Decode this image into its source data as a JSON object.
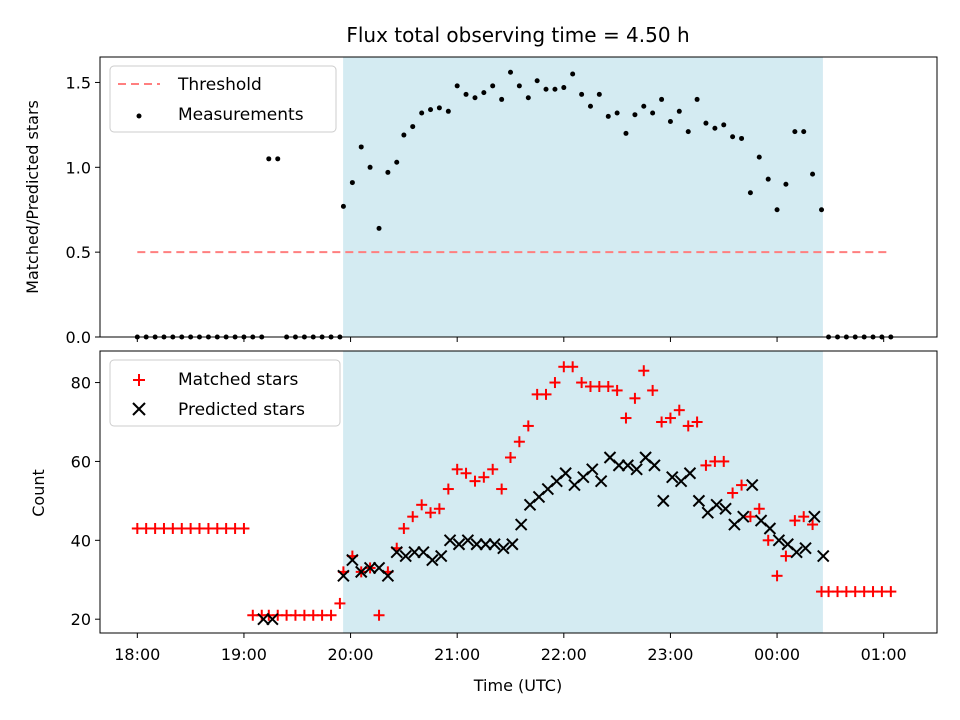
{
  "chart_data": [
    {
      "type": "scatter",
      "title": "Flux total observing time = 4.50 h",
      "ylabel": "Matched/Predicted stars",
      "xlabel": "",
      "ylim": [
        0,
        1.65
      ],
      "yticks": [
        "0.0",
        "0.5",
        "1.0",
        "1.5"
      ],
      "ytick_values": [
        0,
        0.5,
        1.0,
        1.5
      ],
      "legend": {
        "placement": "top-left",
        "entries": [
          "Threshold",
          "Measurements"
        ]
      },
      "shaded_region": {
        "start_hours": 1.93,
        "end_hours": 6.43,
        "color": "#d4ebf2"
      },
      "threshold": {
        "value": 0.5,
        "start_hours": 0.0,
        "end_hours": 7.05,
        "color": "#ff7f7f"
      },
      "series": [
        {
          "name": "Measurements",
          "color": "#000000",
          "x": [
            0.0,
            0.083,
            0.167,
            0.25,
            0.333,
            0.417,
            0.5,
            0.583,
            0.667,
            0.75,
            0.833,
            0.917,
            1.0,
            1.083,
            1.167,
            1.233,
            1.317,
            1.4,
            1.483,
            1.567,
            1.65,
            1.733,
            1.817,
            1.9,
            1.933,
            2.017,
            2.1,
            2.183,
            2.267,
            2.35,
            2.433,
            2.5,
            2.583,
            2.667,
            2.75,
            2.833,
            2.917,
            3.0,
            3.083,
            3.167,
            3.25,
            3.333,
            3.417,
            3.5,
            3.583,
            3.667,
            3.75,
            3.833,
            3.917,
            4.0,
            4.083,
            4.167,
            4.25,
            4.333,
            4.417,
            4.5,
            4.583,
            4.667,
            4.75,
            4.833,
            4.917,
            5.0,
            5.083,
            5.167,
            5.25,
            5.333,
            5.417,
            5.5,
            5.583,
            5.667,
            5.75,
            5.833,
            5.917,
            6.0,
            6.083,
            6.167,
            6.25,
            6.333,
            6.417,
            6.483,
            6.567,
            6.65,
            6.733,
            6.817,
            6.9,
            6.983,
            7.067
          ],
          "y": [
            0,
            0,
            0,
            0,
            0,
            0,
            0,
            0,
            0,
            0,
            0,
            0,
            0,
            0,
            0,
            1.05,
            1.05,
            0,
            0,
            0,
            0,
            0,
            0,
            0,
            0.77,
            0.91,
            1.12,
            1.0,
            0.64,
            0.97,
            1.03,
            1.19,
            1.24,
            1.32,
            1.34,
            1.35,
            1.33,
            1.48,
            1.43,
            1.41,
            1.44,
            1.48,
            1.4,
            1.56,
            1.48,
            1.41,
            1.51,
            1.46,
            1.46,
            1.47,
            1.55,
            1.43,
            1.36,
            1.43,
            1.3,
            1.32,
            1.2,
            1.31,
            1.36,
            1.32,
            1.4,
            1.27,
            1.33,
            1.21,
            1.4,
            1.26,
            1.23,
            1.25,
            1.18,
            1.17,
            0.85,
            1.06,
            0.93,
            0.75,
            0.9,
            1.21,
            1.21,
            0.96,
            0.75,
            0,
            0,
            0,
            0,
            0,
            0,
            0,
            0
          ]
        }
      ]
    },
    {
      "type": "scatter",
      "title": "",
      "xlabel": "Time (UTC)",
      "ylabel": "Count",
      "ylim": [
        16.5,
        88
      ],
      "yticks": [
        "20",
        "40",
        "60",
        "80"
      ],
      "ytick_values": [
        20,
        40,
        60,
        80
      ],
      "xlim_hours": [
        -0.35,
        7.5
      ],
      "xticks": [
        "18:00",
        "19:00",
        "20:00",
        "21:00",
        "22:00",
        "23:00",
        "00:00",
        "01:00"
      ],
      "xtick_values_hours": [
        0,
        1,
        2,
        3,
        4,
        5,
        6,
        7
      ],
      "legend": {
        "placement": "top-left",
        "entries": [
          "Matched stars",
          "Predicted stars"
        ]
      },
      "shaded_region": {
        "start_hours": 1.93,
        "end_hours": 6.43,
        "color": "#d4ebf2"
      },
      "series": [
        {
          "name": "Matched stars",
          "marker": "plus",
          "color": "#ff0000",
          "x": [
            0.0,
            0.083,
            0.167,
            0.25,
            0.333,
            0.417,
            0.5,
            0.583,
            0.667,
            0.75,
            0.833,
            0.917,
            1.0,
            1.083,
            1.167,
            1.233,
            1.317,
            1.4,
            1.483,
            1.567,
            1.65,
            1.733,
            1.817,
            1.9,
            1.933,
            2.017,
            2.1,
            2.183,
            2.267,
            2.35,
            2.433,
            2.5,
            2.583,
            2.667,
            2.75,
            2.833,
            2.917,
            3.0,
            3.083,
            3.167,
            3.25,
            3.333,
            3.417,
            3.5,
            3.583,
            3.667,
            3.75,
            3.833,
            3.917,
            4.0,
            4.083,
            4.167,
            4.25,
            4.333,
            4.417,
            4.5,
            4.583,
            4.667,
            4.75,
            4.833,
            4.917,
            5.0,
            5.083,
            5.167,
            5.25,
            5.333,
            5.417,
            5.5,
            5.583,
            5.667,
            5.75,
            5.833,
            5.917,
            6.0,
            6.083,
            6.167,
            6.25,
            6.333,
            6.417,
            6.483,
            6.567,
            6.65,
            6.733,
            6.817,
            6.9,
            6.983,
            7.067
          ],
          "y": [
            43,
            43,
            43,
            43,
            43,
            43,
            43,
            43,
            43,
            43,
            43,
            43,
            43,
            21,
            21,
            21,
            21,
            21,
            21,
            21,
            21,
            21,
            21,
            24,
            32,
            36,
            32,
            33,
            21,
            32,
            38,
            43,
            46,
            49,
            47,
            48,
            53,
            58,
            57,
            55,
            56,
            58,
            53,
            61,
            65,
            69,
            77,
            77,
            80,
            84,
            84,
            80,
            79,
            79,
            79,
            78,
            71,
            76,
            83,
            78,
            70,
            71,
            73,
            69,
            70,
            59,
            60,
            60,
            52,
            54,
            46,
            48,
            40,
            31,
            36,
            45,
            46,
            44,
            27,
            27,
            27,
            27,
            27,
            27,
            27,
            27,
            27
          ]
        },
        {
          "name": "Predicted stars",
          "marker": "x",
          "color": "#000000",
          "x": [
            1.183,
            1.267,
            1.933,
            2.017,
            2.1,
            2.183,
            2.267,
            2.35,
            2.433,
            2.517,
            2.6,
            2.683,
            2.767,
            2.85,
            2.933,
            3.017,
            3.1,
            3.183,
            3.267,
            3.35,
            3.433,
            3.517,
            3.6,
            3.683,
            3.767,
            3.85,
            3.933,
            4.017,
            4.1,
            4.183,
            4.267,
            4.35,
            4.433,
            4.517,
            4.6,
            4.683,
            4.767,
            4.85,
            4.933,
            5.017,
            5.1,
            5.183,
            5.267,
            5.35,
            5.433,
            5.517,
            5.6,
            5.683,
            5.767,
            5.85,
            5.933,
            6.017,
            6.1,
            6.183,
            6.267,
            6.35,
            6.433
          ],
          "y": [
            20,
            20,
            31,
            35,
            32,
            33,
            33,
            31,
            37,
            36,
            37,
            37,
            35,
            36,
            40,
            39,
            40,
            39,
            39,
            39,
            38,
            39,
            44,
            49,
            51,
            53,
            55,
            57,
            54,
            56,
            58,
            55,
            61,
            59,
            59,
            58,
            61,
            59,
            50,
            56,
            55,
            57,
            50,
            47,
            49,
            48,
            44,
            46,
            54,
            45,
            43,
            40,
            39,
            37,
            38,
            46,
            36
          ]
        }
      ]
    }
  ]
}
